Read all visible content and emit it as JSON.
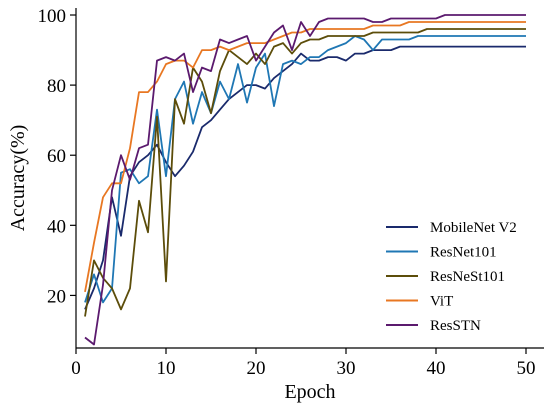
{
  "chart_data": {
    "type": "line",
    "xlabel": "Epoch",
    "ylabel": "Accuracy(%)",
    "xlim": [
      0,
      52
    ],
    "ylim": [
      5,
      102
    ],
    "xticks": [
      0,
      10,
      20,
      30,
      40,
      50
    ],
    "yticks": [
      20,
      40,
      60,
      80,
      100
    ],
    "grid": false,
    "legend_position": "lower right",
    "x": [
      1,
      2,
      3,
      4,
      5,
      6,
      7,
      8,
      9,
      10,
      11,
      12,
      13,
      14,
      15,
      16,
      17,
      18,
      19,
      20,
      21,
      22,
      23,
      24,
      25,
      26,
      27,
      28,
      29,
      30,
      31,
      32,
      33,
      34,
      35,
      36,
      37,
      38,
      39,
      40,
      41,
      42,
      43,
      44,
      45,
      46,
      47,
      48,
      49,
      50
    ],
    "series": [
      {
        "name": "MobileNet V2",
        "color": "#1a2a6c",
        "values": [
          16,
          22,
          30,
          48,
          37,
          54,
          58,
          60,
          63,
          58,
          54,
          57,
          61,
          68,
          70,
          73,
          76,
          78,
          80,
          80,
          79,
          82,
          84,
          86,
          89,
          87,
          87,
          88,
          88,
          87,
          89,
          89,
          90,
          90,
          90,
          91,
          91,
          91,
          91,
          91,
          91,
          91,
          91,
          91,
          91,
          91,
          91,
          91,
          91,
          91
        ]
      },
      {
        "name": "ResNet101",
        "color": "#1f77b4",
        "values": [
          18,
          26,
          18,
          22,
          55,
          56,
          52,
          54,
          73,
          54,
          76,
          81,
          69,
          78,
          72,
          81,
          76,
          86,
          75,
          85,
          89,
          74,
          86,
          87,
          86,
          88,
          88,
          90,
          91,
          92,
          94,
          93,
          90,
          93,
          93,
          93,
          93,
          94,
          94,
          94,
          94,
          94,
          94,
          94,
          94,
          94,
          94,
          94,
          94,
          94
        ]
      },
      {
        "name": "ResNeSt101",
        "color": "#5c4d0a",
        "values": [
          14,
          30,
          25,
          22,
          16,
          22,
          47,
          38,
          71,
          24,
          76,
          69,
          85,
          81,
          72,
          84,
          90,
          88,
          86,
          89,
          86,
          91,
          92,
          89,
          92,
          93,
          93,
          94,
          94,
          94,
          94,
          94,
          95,
          95,
          95,
          95,
          95,
          95,
          96,
          96,
          96,
          96,
          96,
          96,
          96,
          96,
          96,
          96,
          96,
          96
        ]
      },
      {
        "name": "ViT",
        "color": "#e87722",
        "values": [
          21,
          35,
          48,
          52,
          52,
          62,
          78,
          78,
          81,
          86,
          87,
          87,
          85,
          90,
          90,
          91,
          90,
          91,
          92,
          92,
          92,
          93,
          94,
          95,
          95,
          96,
          96,
          96,
          96,
          96,
          96,
          96,
          97,
          97,
          97,
          97,
          98,
          98,
          98,
          98,
          98,
          98,
          98,
          98,
          98,
          98,
          98,
          98,
          98,
          98
        ]
      },
      {
        "name": "ResSTN",
        "color": "#5b1a6e",
        "values": [
          8,
          6,
          23,
          50,
          60,
          53,
          62,
          63,
          87,
          88,
          87,
          89,
          78,
          85,
          84,
          93,
          92,
          93,
          94,
          87,
          91,
          95,
          97,
          90,
          98,
          94,
          98,
          99,
          99,
          99,
          99,
          99,
          98,
          98,
          99,
          99,
          99,
          99,
          99,
          99,
          100,
          100,
          100,
          100,
          100,
          100,
          100,
          100,
          100,
          100
        ]
      }
    ]
  }
}
